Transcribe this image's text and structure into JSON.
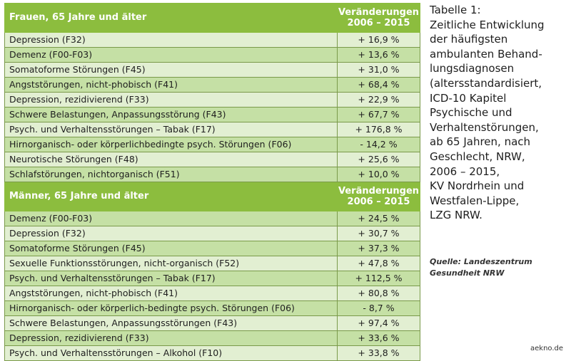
{
  "table": {
    "sections": [
      {
        "title": "Frauen, 65 Jahre und älter",
        "value_header": [
          "Veränderungen",
          "2006 – 2015"
        ],
        "rows": [
          {
            "label": "Depression (F32)",
            "value": "+ 16,9 %"
          },
          {
            "label": "Demenz (F00-F03)",
            "value": "+ 13,6 %"
          },
          {
            "label": "Somatoforme Störungen (F45)",
            "value": "+ 31,0 %"
          },
          {
            "label": "Angststörungen, nicht-phobisch (F41)",
            "value": "+ 68,4 %"
          },
          {
            "label": "Depression, rezidivierend (F33)",
            "value": "+ 22,9 %"
          },
          {
            "label": "Schwere Belastungen, Anpassungsstörung (F43)",
            "value": "+ 67,7 %"
          },
          {
            "label": "Psych. und Verhaltensstörungen – Tabak (F17)",
            "value": "+ 176,8 %"
          },
          {
            "label": "Hirnorganisch- oder körperlichbedingte psych. Störungen (F06)",
            "value": "- 14,2 %"
          },
          {
            "label": "Neurotische Störungen (F48)",
            "value": "+ 25,6 %"
          },
          {
            "label": "Schlafstörungen, nichtorganisch (F51)",
            "value": "+ 10,0 %"
          }
        ]
      },
      {
        "title": "Männer, 65 Jahre und älter",
        "value_header": [
          "Veränderungen",
          "2006 – 2015"
        ],
        "rows": [
          {
            "label": "Demenz (F00-F03)",
            "value": "+ 24,5 %"
          },
          {
            "label": "Depression (F32)",
            "value": "+ 30,7 %"
          },
          {
            "label": "Somatoforme Störungen (F45)",
            "value": "+ 37,3 %"
          },
          {
            "label": "Sexuelle Funktionsstörungen, nicht-organisch (F52)",
            "value": "+ 47,8 %"
          },
          {
            "label": "Psych. und Verhaltensstörungen – Tabak (F17)",
            "value": "+ 112,5 %"
          },
          {
            "label": "Angststörungen, nicht-phobisch (F41)",
            "value": "+ 80,8 %"
          },
          {
            "label": "Hirnorganisch- oder körperlich-bedingte psych. Störungen (F06)",
            "value": "- 8,7 %"
          },
          {
            "label": "Schwere Belastungen, Anpassungsstörungen (F43)",
            "value": "+ 97,4 %"
          },
          {
            "label": "Depression, rezidivierend (F33)",
            "value": "+ 33,6 %"
          },
          {
            "label": "Psych. und Verhaltensstörungen – Alkohol (F10)",
            "value": "+ 33,8 %"
          }
        ]
      }
    ]
  },
  "caption": {
    "lines": [
      "Tabelle 1:",
      "Zeitliche Entwicklung",
      "der häufigsten",
      "ambulanten Behand-",
      "lungsdiagnosen",
      "(altersstandardisiert,",
      "ICD-10 Kapitel",
      "Psychische und",
      "Verhaltenstörungen,",
      "ab 65 Jahren, nach",
      "Geschlecht, NRW,",
      "2006 – 2015,",
      "KV Nordrhein und",
      "Westfalen-Lippe,",
      "LZG NRW."
    ]
  },
  "source": {
    "lines": [
      "Quelle: Landeszentrum",
      "Gesundheit NRW"
    ]
  },
  "credit": "aekno.de",
  "colors": {
    "header_green": "#8cbd3e",
    "row_dark": "#c5e0a5",
    "row_light": "#e2efd2",
    "border": "#7a9a4a"
  }
}
